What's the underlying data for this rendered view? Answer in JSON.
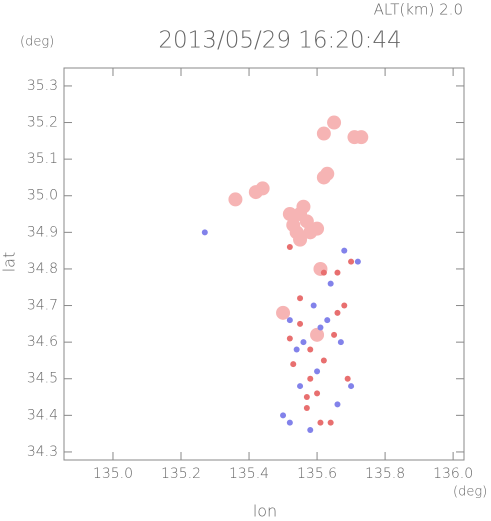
{
  "chart_data": {
    "type": "scatter",
    "title": "2013/05/29 16:20:44",
    "subtitle": "ALT(km) 2.0",
    "y_unit": "(deg)",
    "x_unit": "(deg)",
    "x_label": "lon",
    "y_label": "lat",
    "xlim": [
      134.856,
      136.032
    ],
    "ylim": [
      34.278,
      35.349
    ],
    "xticks": [
      {
        "value": 135,
        "label": "135.0"
      },
      135.2,
      135.4,
      135.6,
      135.8,
      {
        "value": 136,
        "label": "136.0"
      }
    ],
    "yticks": [
      34.3,
      34.4,
      34.5,
      34.6,
      34.7,
      34.8,
      34.9,
      {
        "value": 35,
        "label": "35.0"
      },
      35.1,
      35.2,
      35.3
    ],
    "series": [
      {
        "color": "#f6b4b4",
        "marker_size": 7,
        "x": [
          135.55,
          135.57,
          135.53,
          135.58,
          135.55,
          135.6,
          135.52,
          135.56,
          135.54,
          135.62,
          135.63,
          135.73,
          135.71,
          135.62,
          135.65,
          135.44,
          135.42,
          135.36,
          135.61,
          135.5,
          135.6
        ],
        "y": [
          34.95,
          34.93,
          34.92,
          34.9,
          34.88,
          34.91,
          34.95,
          34.97,
          34.9,
          35.05,
          35.06,
          35.16,
          35.16,
          35.17,
          35.2,
          35.02,
          35.01,
          34.99,
          34.8,
          34.68,
          34.62
        ]
      },
      {
        "color": "#e86f6f",
        "marker_size": 3,
        "x": [
          135.55,
          135.58,
          135.52,
          135.62,
          135.66,
          135.68,
          135.6,
          135.64,
          135.61,
          135.66,
          135.7,
          135.53,
          135.58,
          135.55,
          135.65,
          135.57,
          135.69,
          135.52,
          135.62,
          135.57
        ],
        "y": [
          34.65,
          34.58,
          34.61,
          34.55,
          34.68,
          34.7,
          34.46,
          34.38,
          34.38,
          34.79,
          34.82,
          34.54,
          34.5,
          34.72,
          34.62,
          34.45,
          34.5,
          34.86,
          34.79,
          34.42
        ]
      },
      {
        "color": "#8282ea",
        "marker_size": 3,
        "x": [
          135.56,
          135.6,
          135.52,
          135.67,
          135.7,
          135.63,
          135.59,
          135.5,
          135.55,
          135.52,
          135.27,
          135.68,
          135.72,
          135.64,
          135.58,
          135.66,
          135.54,
          135.61
        ],
        "y": [
          34.6,
          34.52,
          34.66,
          34.6,
          34.48,
          34.66,
          34.7,
          34.4,
          34.48,
          34.38,
          34.9,
          34.85,
          34.82,
          34.76,
          34.36,
          34.43,
          34.58,
          34.64
        ]
      }
    ]
  }
}
